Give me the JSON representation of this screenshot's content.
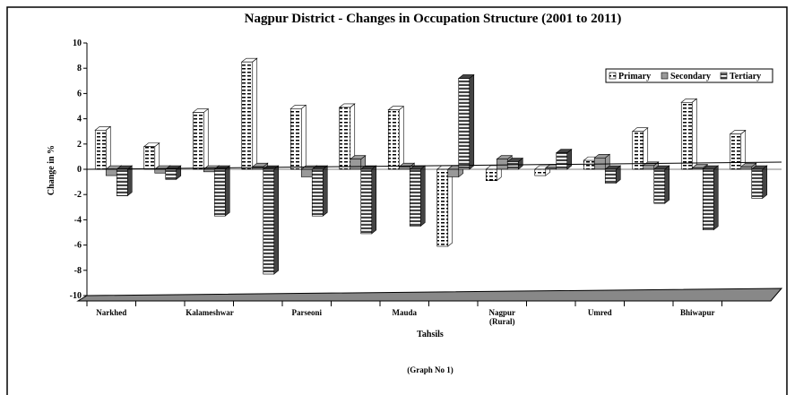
{
  "chart_data": {
    "type": "bar",
    "title": "Nagpur District - Changes in Occupation Structure (2001 to 2011)",
    "x_label": "Tahsils",
    "y_label": "Change in %",
    "note": "(Graph No 1)",
    "categories": [
      "Narkhed",
      null,
      "Kalameshwar",
      null,
      "Parseoni",
      null,
      "Mauda",
      null,
      "Nagpur (Rural)",
      null,
      "Umred",
      null,
      "Bhiwapur",
      null
    ],
    "series": [
      {
        "name": "Primary",
        "color": "#ffffff",
        "values": [
          3.1,
          1.8,
          4.5,
          8.5,
          4.8,
          4.9,
          4.7,
          -6.1,
          -0.9,
          -0.5,
          0.7,
          3.0,
          5.3,
          2.8
        ]
      },
      {
        "name": "Secondary",
        "color": "#999999",
        "values": [
          -0.5,
          -0.3,
          -0.2,
          0.2,
          -0.6,
          0.8,
          0.2,
          -0.6,
          0.8,
          0.1,
          0.9,
          0.3,
          0.1,
          0.2
        ]
      },
      {
        "name": "Tertiary",
        "color": "#444444",
        "values": [
          -2.1,
          -0.8,
          -3.7,
          -8.3,
          -3.7,
          -5.1,
          -4.5,
          7.2,
          0.6,
          1.3,
          -1.1,
          -2.7,
          -4.8,
          -2.3
        ]
      }
    ],
    "ylim": [
      -10,
      10
    ],
    "yticks": [
      -10,
      -8,
      -6,
      -4,
      -2,
      0,
      2,
      4,
      6,
      8,
      10
    ],
    "legend": "top-right"
  }
}
